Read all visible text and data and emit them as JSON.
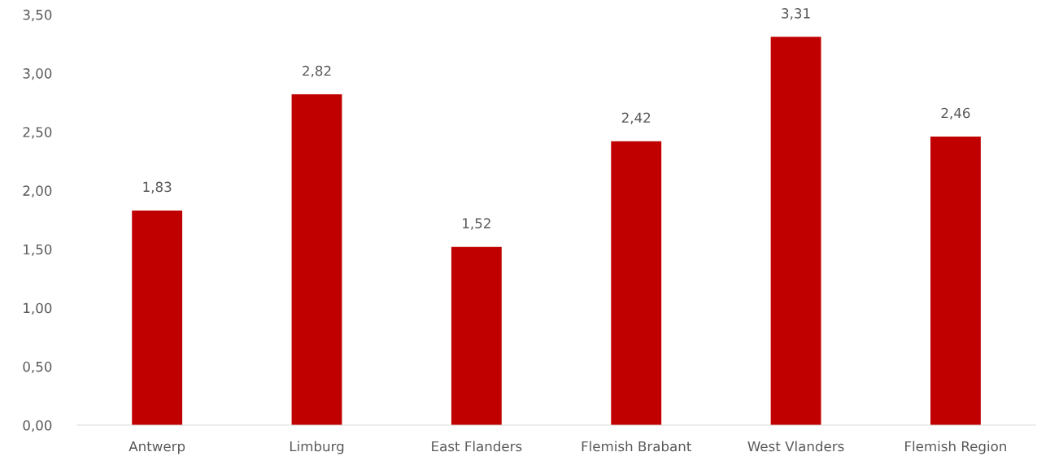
{
  "chart_data": {
    "type": "bar",
    "categories": [
      "Antwerp",
      "Limburg",
      "East Flanders",
      "Flemish Brabant",
      "West Vlanders",
      "Flemish Region"
    ],
    "values": [
      1.83,
      2.82,
      1.52,
      2.42,
      3.31,
      2.46
    ],
    "value_labels": [
      "1,83",
      "2,82",
      "1,52",
      "2,42",
      "3,31",
      "2,46"
    ],
    "color": "#c00000",
    "ylim": [
      0,
      3.5
    ],
    "yticks": [
      {
        "value": 0,
        "label": "0,00"
      },
      {
        "value": 0.5,
        "label": "0,50"
      },
      {
        "value": 1,
        "label": "1,00"
      },
      {
        "value": 1.5,
        "label": "1,50"
      },
      {
        "value": 2,
        "label": "2,00"
      },
      {
        "value": 2.5,
        "label": "2,50"
      },
      {
        "value": 3,
        "label": "3,00"
      },
      {
        "value": 3.5,
        "label": "3,50"
      }
    ],
    "grid": false,
    "legend": false
  }
}
